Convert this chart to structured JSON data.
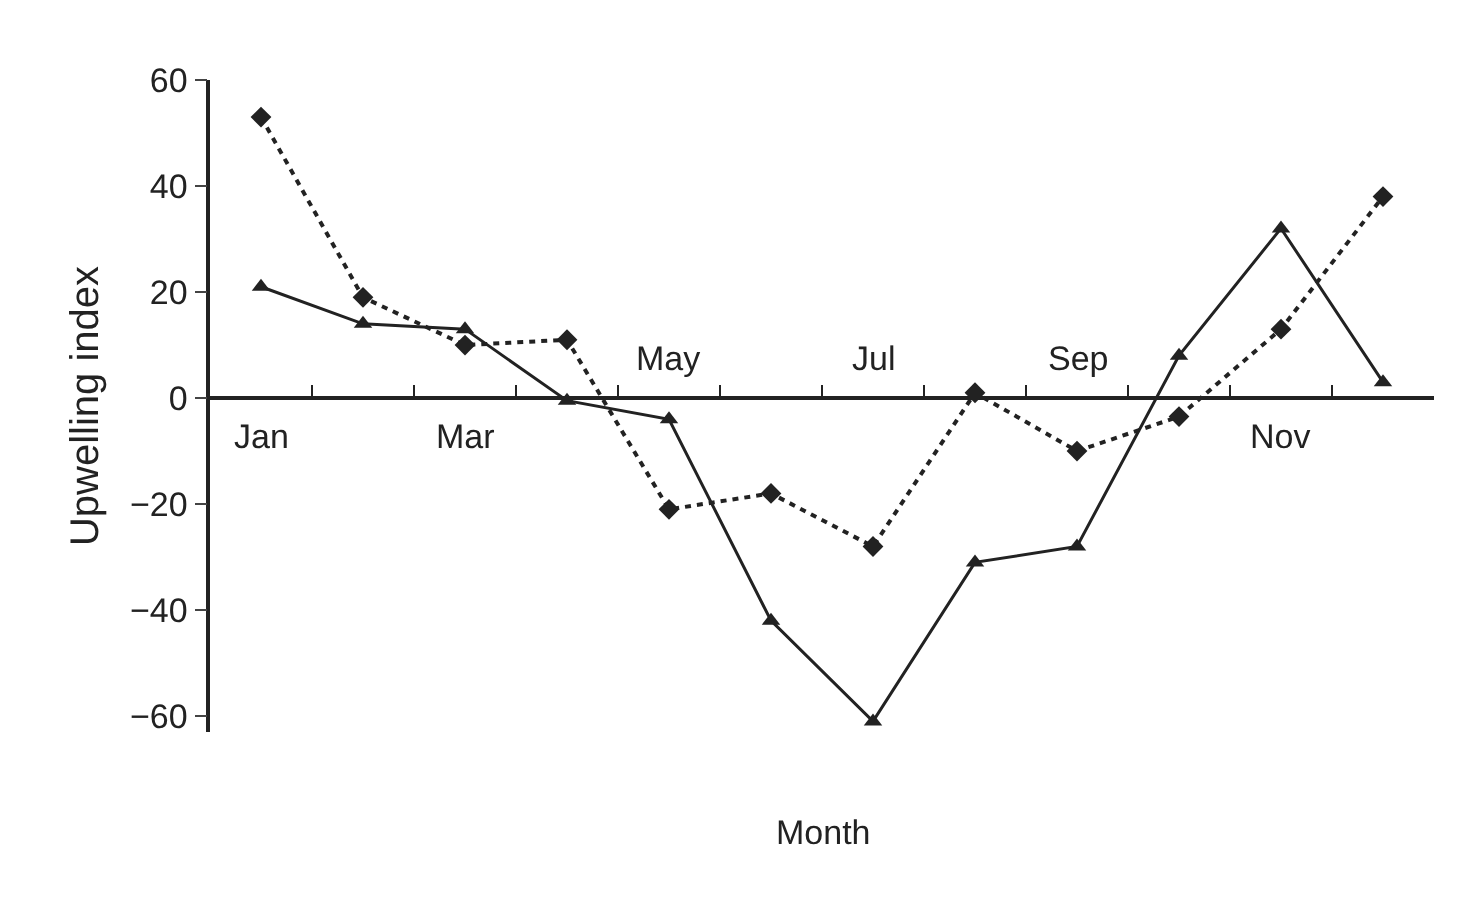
{
  "chart_data": {
    "type": "line",
    "xlabel": "Month",
    "ylabel": "Upwelling index",
    "categories": [
      "Jan",
      null,
      "Mar",
      null,
      "May",
      null,
      "Jul",
      null,
      "Sep",
      null,
      "Nov",
      null
    ],
    "series": [
      {
        "color": "#222222",
        "marker": "triangle",
        "line_style": "solid",
        "values": [
          21,
          14,
          13,
          -0.5,
          -4,
          -42,
          -61,
          -31,
          -28,
          8,
          32,
          3
        ]
      },
      {
        "color": "#222222",
        "marker": "diamond",
        "line_style": "dotted",
        "values": [
          53,
          19,
          10,
          11,
          -21,
          -18,
          -28,
          1,
          -10,
          -3.5,
          13,
          38
        ]
      }
    ],
    "ylim": [
      -63,
      60
    ],
    "yticks": [
      -60,
      -40,
      -20,
      0,
      20,
      40,
      60
    ]
  }
}
